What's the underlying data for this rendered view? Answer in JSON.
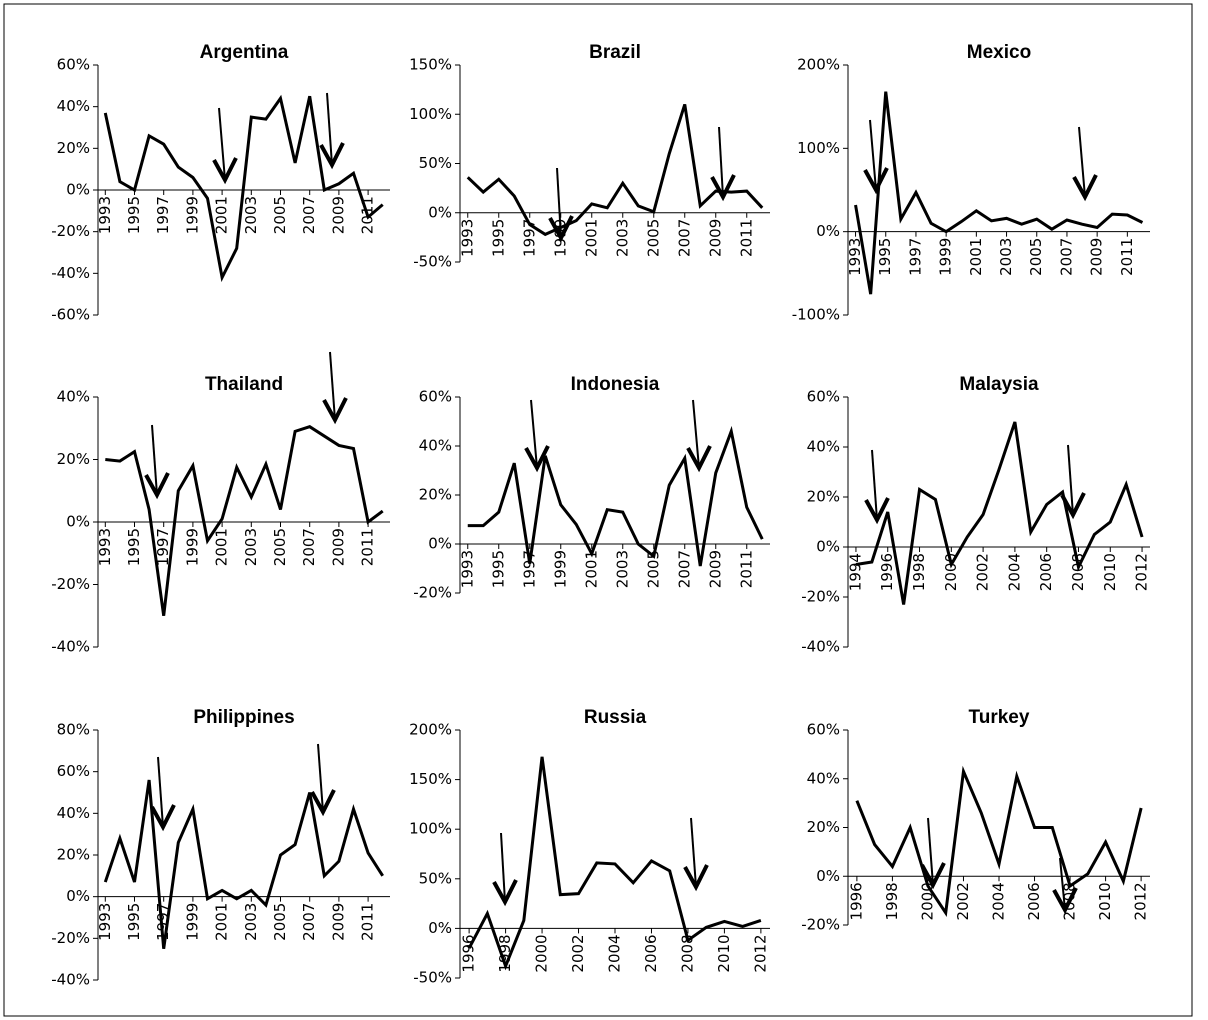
{
  "chart_data": [
    {
      "type": "line",
      "title": "Argentina",
      "x": [
        1993,
        1994,
        1995,
        1996,
        1997,
        1998,
        1999,
        2000,
        2001,
        2002,
        2003,
        2004,
        2005,
        2006,
        2007,
        2008,
        2009,
        2010,
        2011,
        2012
      ],
      "values": [
        37,
        4,
        0,
        26,
        22,
        11,
        6,
        -4,
        -42,
        -28,
        35,
        34,
        44,
        13,
        45,
        0,
        3,
        8,
        -13,
        -7
      ],
      "color": "#000000",
      "ylim": [
        -60,
        60
      ],
      "yticks": [
        {
          "value": -60,
          "label": "-60%"
        },
        {
          "value": -40,
          "label": "-40%"
        },
        {
          "value": -20,
          "label": "-20%"
        },
        {
          "value": 0,
          "label": "0%"
        },
        {
          "value": 20,
          "label": "20%"
        },
        {
          "value": 40,
          "label": "40%"
        },
        {
          "value": 60,
          "label": "60%"
        }
      ],
      "xticks": [
        1993,
        1995,
        1997,
        1999,
        2001,
        2003,
        2005,
        2007,
        2009,
        2011
      ]
    },
    {
      "type": "line",
      "title": "Brazil",
      "x": [
        1993,
        1994,
        1995,
        1996,
        1997,
        1998,
        1999,
        2000,
        2001,
        2002,
        2003,
        2004,
        2005,
        2006,
        2007,
        2008,
        2009,
        2010,
        2011,
        2012
      ],
      "values": [
        36,
        21,
        34,
        17,
        -12,
        -22,
        -15,
        -8,
        9,
        5,
        30,
        7,
        1,
        60,
        110,
        7,
        22,
        21,
        22,
        5
      ],
      "color": "#000000",
      "ylim": [
        -50,
        150
      ],
      "yticks": [
        {
          "value": -50,
          "label": "-50%"
        },
        {
          "value": 0,
          "label": "0%"
        },
        {
          "value": 50,
          "label": "50%"
        },
        {
          "value": 100,
          "label": "100%"
        },
        {
          "value": 150,
          "label": "150%"
        }
      ],
      "xticks": [
        1993,
        1995,
        1997,
        1999,
        2001,
        2003,
        2005,
        2007,
        2009,
        2011
      ]
    },
    {
      "type": "line",
      "title": "Mexico",
      "x": [
        1993,
        1994,
        1995,
        1996,
        1997,
        1998,
        1999,
        2000,
        2001,
        2002,
        2003,
        2004,
        2005,
        2006,
        2007,
        2008,
        2009,
        2010,
        2011,
        2012
      ],
      "values": [
        32,
        -75,
        168,
        15,
        47,
        10,
        0,
        12,
        25,
        13,
        16,
        9,
        15,
        3,
        14,
        9,
        5,
        21,
        20,
        11
      ],
      "color": "#000000",
      "ylim": [
        -100,
        200
      ],
      "yticks": [
        {
          "value": -100,
          "label": "-100%"
        },
        {
          "value": 0,
          "label": "0%"
        },
        {
          "value": 100,
          "label": "100%"
        },
        {
          "value": 200,
          "label": "200%"
        }
      ],
      "xticks": [
        1993,
        1995,
        1997,
        1999,
        2001,
        2003,
        2005,
        2007,
        2009,
        2011
      ]
    },
    {
      "type": "line",
      "title": "Thailand",
      "x": [
        1993,
        1994,
        1995,
        1996,
        1997,
        1998,
        1999,
        2000,
        2001,
        2002,
        2003,
        2004,
        2005,
        2006,
        2007,
        2008,
        2009,
        2010,
        2011,
        2012
      ],
      "values": [
        20,
        19.5,
        22.5,
        4,
        -30,
        10,
        18,
        -6,
        1,
        17.5,
        8,
        18.5,
        4,
        29,
        30.5,
        27.5,
        24.5,
        23.5,
        0,
        3.5
      ],
      "color": "#000000",
      "ylim": [
        -40,
        40
      ],
      "yticks": [
        {
          "value": -40,
          "label": "-40%"
        },
        {
          "value": -20,
          "label": "-20%"
        },
        {
          "value": 0,
          "label": "0%"
        },
        {
          "value": 20,
          "label": "20%"
        },
        {
          "value": 40,
          "label": "40%"
        }
      ],
      "xticks": [
        1993,
        1995,
        1997,
        1999,
        2001,
        2003,
        2005,
        2007,
        2009,
        2011
      ]
    },
    {
      "type": "line",
      "title": "Indonesia",
      "x": [
        1993,
        1994,
        1995,
        1996,
        1997,
        1998,
        1999,
        2000,
        2001,
        2002,
        2003,
        2004,
        2005,
        2006,
        2007,
        2008,
        2009,
        2010,
        2011,
        2012
      ],
      "values": [
        7.5,
        7.5,
        13,
        33,
        -8,
        36,
        16,
        8,
        -4,
        14,
        13,
        0,
        -5,
        24,
        35,
        -9,
        29,
        46,
        15,
        2
      ],
      "color": "#000000",
      "ylim": [
        -20,
        60
      ],
      "yticks": [
        {
          "value": -20,
          "label": "-20%"
        },
        {
          "value": 0,
          "label": "0%"
        },
        {
          "value": 20,
          "label": "20%"
        },
        {
          "value": 40,
          "label": "40%"
        },
        {
          "value": 60,
          "label": "60%"
        }
      ],
      "xticks": [
        1993,
        1995,
        1997,
        1999,
        2001,
        2003,
        2005,
        2007,
        2009,
        2011
      ]
    },
    {
      "type": "line",
      "title": "Malaysia",
      "x": [
        1994,
        1995,
        1996,
        1997,
        1998,
        1999,
        2000,
        2001,
        2002,
        2003,
        2004,
        2005,
        2006,
        2007,
        2008,
        2009,
        2010,
        2011,
        2012
      ],
      "values": [
        -7,
        -6,
        14,
        -23,
        23,
        19,
        -7,
        4,
        13,
        31,
        50,
        6,
        17,
        22,
        -8,
        5,
        10,
        25,
        4
      ],
      "color": "#000000",
      "ylim": [
        -40,
        60
      ],
      "yticks": [
        {
          "value": -40,
          "label": "-40%"
        },
        {
          "value": -20,
          "label": "-20%"
        },
        {
          "value": 0,
          "label": "0%"
        },
        {
          "value": 20,
          "label": "20%"
        },
        {
          "value": 40,
          "label": "40%"
        },
        {
          "value": 60,
          "label": "60%"
        }
      ],
      "xticks": [
        1994,
        1996,
        1998,
        2000,
        2002,
        2004,
        2006,
        2008,
        2010,
        2012
      ]
    },
    {
      "type": "line",
      "title": "Philippines",
      "x": [
        1993,
        1994,
        1995,
        1996,
        1997,
        1998,
        1999,
        2000,
        2001,
        2002,
        2003,
        2004,
        2005,
        2006,
        2007,
        2008,
        2009,
        2010,
        2011,
        2012
      ],
      "values": [
        7,
        28,
        7,
        56,
        -25,
        26,
        42,
        -1,
        3,
        -1,
        3,
        -4,
        20,
        25,
        50,
        10,
        17,
        42,
        21,
        10
      ],
      "color": "#000000",
      "ylim": [
        -40,
        80
      ],
      "yticks": [
        {
          "value": -40,
          "label": "-40%"
        },
        {
          "value": -20,
          "label": "-20%"
        },
        {
          "value": 0,
          "label": "0%"
        },
        {
          "value": 20,
          "label": "20%"
        },
        {
          "value": 40,
          "label": "40%"
        },
        {
          "value": 60,
          "label": "60%"
        },
        {
          "value": 80,
          "label": "80%"
        }
      ],
      "xticks": [
        1993,
        1995,
        1997,
        1999,
        2001,
        2003,
        2005,
        2007,
        2009,
        2011
      ]
    },
    {
      "type": "line",
      "title": "Russia",
      "x": [
        1996,
        1997,
        1998,
        1999,
        2000,
        2001,
        2002,
        2003,
        2004,
        2005,
        2006,
        2007,
        2008,
        2009,
        2010,
        2011,
        2012
      ],
      "values": [
        -20,
        15,
        -38,
        8,
        173,
        34,
        35,
        66,
        65,
        46,
        68,
        58,
        -12,
        1,
        7,
        2,
        8
      ],
      "color": "#000000",
      "ylim": [
        -50,
        200
      ],
      "yticks": [
        {
          "value": -50,
          "label": "-50%"
        },
        {
          "value": 0,
          "label": "0%"
        },
        {
          "value": 50,
          "label": "50%"
        },
        {
          "value": 100,
          "label": "100%"
        },
        {
          "value": 150,
          "label": "150%"
        },
        {
          "value": 200,
          "label": "200%"
        }
      ],
      "xticks": [
        1996,
        1998,
        2000,
        2002,
        2004,
        2006,
        2008,
        2010,
        2012
      ]
    },
    {
      "type": "line",
      "title": "Turkey",
      "x": [
        1996,
        1997,
        1998,
        1999,
        2000,
        2001,
        2002,
        2003,
        2004,
        2005,
        2006,
        2007,
        2008,
        2009,
        2010,
        2011,
        2012
      ],
      "values": [
        31,
        13,
        4,
        20,
        -4,
        -15,
        43,
        26,
        5,
        41,
        20,
        20,
        -4,
        1,
        14,
        -2,
        28
      ],
      "color": "#000000",
      "ylim": [
        -20,
        60
      ],
      "yticks": [
        {
          "value": -20,
          "label": "-20%"
        },
        {
          "value": 0,
          "label": "0%"
        },
        {
          "value": 20,
          "label": "20%"
        },
        {
          "value": 40,
          "label": "40%"
        },
        {
          "value": 60,
          "label": "60%"
        }
      ],
      "xticks": [
        1996,
        1998,
        2000,
        2002,
        2004,
        2006,
        2008,
        2010,
        2012
      ]
    }
  ]
}
